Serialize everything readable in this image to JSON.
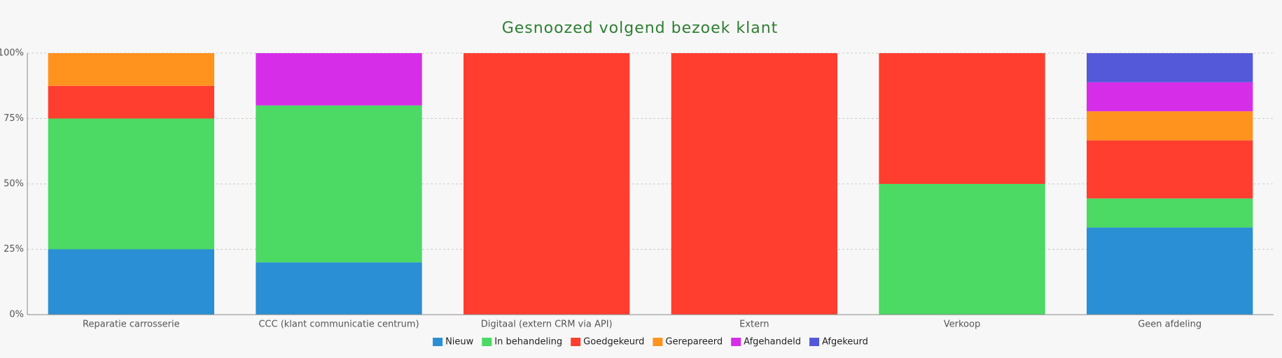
{
  "chart_data": {
    "type": "stacked_bar",
    "title": "Gesnoozed volgend bezoek klant",
    "categories": [
      "Reparatie carrosserie",
      "CCC (klant communicatie centrum)",
      "Digitaal (extern CRM via API)",
      "Extern",
      "Verkoop",
      "Geen afdeling"
    ],
    "series": [
      {
        "name": "Nieuw",
        "color": "#2a8fd4",
        "values": [
          25,
          20,
          0,
          0,
          0,
          33.33
        ]
      },
      {
        "name": "In behandeling",
        "color": "#4cd964",
        "values": [
          50,
          60,
          0,
          0,
          50,
          11.11
        ]
      },
      {
        "name": "Goedgekeurd",
        "color": "#ff3e2f",
        "values": [
          12.5,
          0,
          100,
          100,
          50,
          22.22
        ]
      },
      {
        "name": "Gerepareerd",
        "color": "#ff931e",
        "values": [
          12.5,
          0,
          0,
          0,
          0,
          11.11
        ]
      },
      {
        "name": "Afgehandeld",
        "color": "#d62ee8",
        "values": [
          0,
          20,
          0,
          0,
          0,
          11.11
        ]
      },
      {
        "name": "Afgekeurd",
        "color": "#5459d9",
        "values": [
          0,
          0,
          0,
          0,
          0,
          11.11
        ]
      }
    ],
    "ylim": [
      0,
      100
    ],
    "yticks": [
      {
        "value": 0,
        "label": "0%"
      },
      {
        "value": 25,
        "label": "25%"
      },
      {
        "value": 50,
        "label": "50%"
      },
      {
        "value": 75,
        "label": "75%"
      },
      {
        "value": 100,
        "label": "100%"
      }
    ],
    "grid": true,
    "legend": "bottom"
  }
}
